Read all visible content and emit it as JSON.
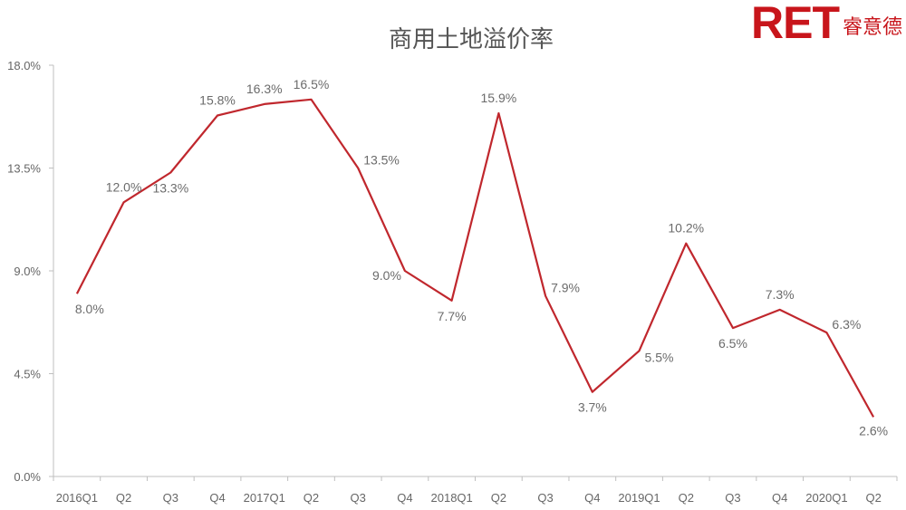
{
  "logo": {
    "mark": "RET",
    "text": "睿意德"
  },
  "colors": {
    "line": "#c0272d",
    "axis": "#bfbfbf",
    "brand": "#c8151b"
  },
  "chart_data": {
    "type": "line",
    "title": "商用土地溢价率",
    "xlabel": "",
    "ylabel": "",
    "ylim": [
      0,
      18
    ],
    "yticks": [
      "0.0%",
      "4.5%",
      "9.0%",
      "13.5%",
      "18.0%"
    ],
    "yticks_values": [
      0,
      4.5,
      9.0,
      13.5,
      18.0
    ],
    "grid": false,
    "legend": "none",
    "categories": [
      "2016Q1",
      "Q2",
      "Q3",
      "Q4",
      "2017Q1",
      "Q2",
      "Q3",
      "Q4",
      "2018Q1",
      "Q2",
      "Q3",
      "Q4",
      "2019Q1",
      "Q2",
      "Q3",
      "Q4",
      "2020Q1",
      "Q2"
    ],
    "series": [
      {
        "name": "",
        "values": [
          8.0,
          12.0,
          13.3,
          15.8,
          16.3,
          16.5,
          13.5,
          9.0,
          7.7,
          15.9,
          7.9,
          3.7,
          5.5,
          10.2,
          6.5,
          7.3,
          6.3,
          2.6
        ],
        "labels": [
          "8.0%",
          "12.0%",
          "13.3%",
          "15.8%",
          "16.3%",
          "16.5%",
          "13.5%",
          "9.0%",
          "7.7%",
          "15.9%",
          "7.9%",
          "3.7%",
          "5.5%",
          "10.2%",
          "6.5%",
          "7.3%",
          "6.3%",
          "2.6%"
        ]
      }
    ]
  }
}
